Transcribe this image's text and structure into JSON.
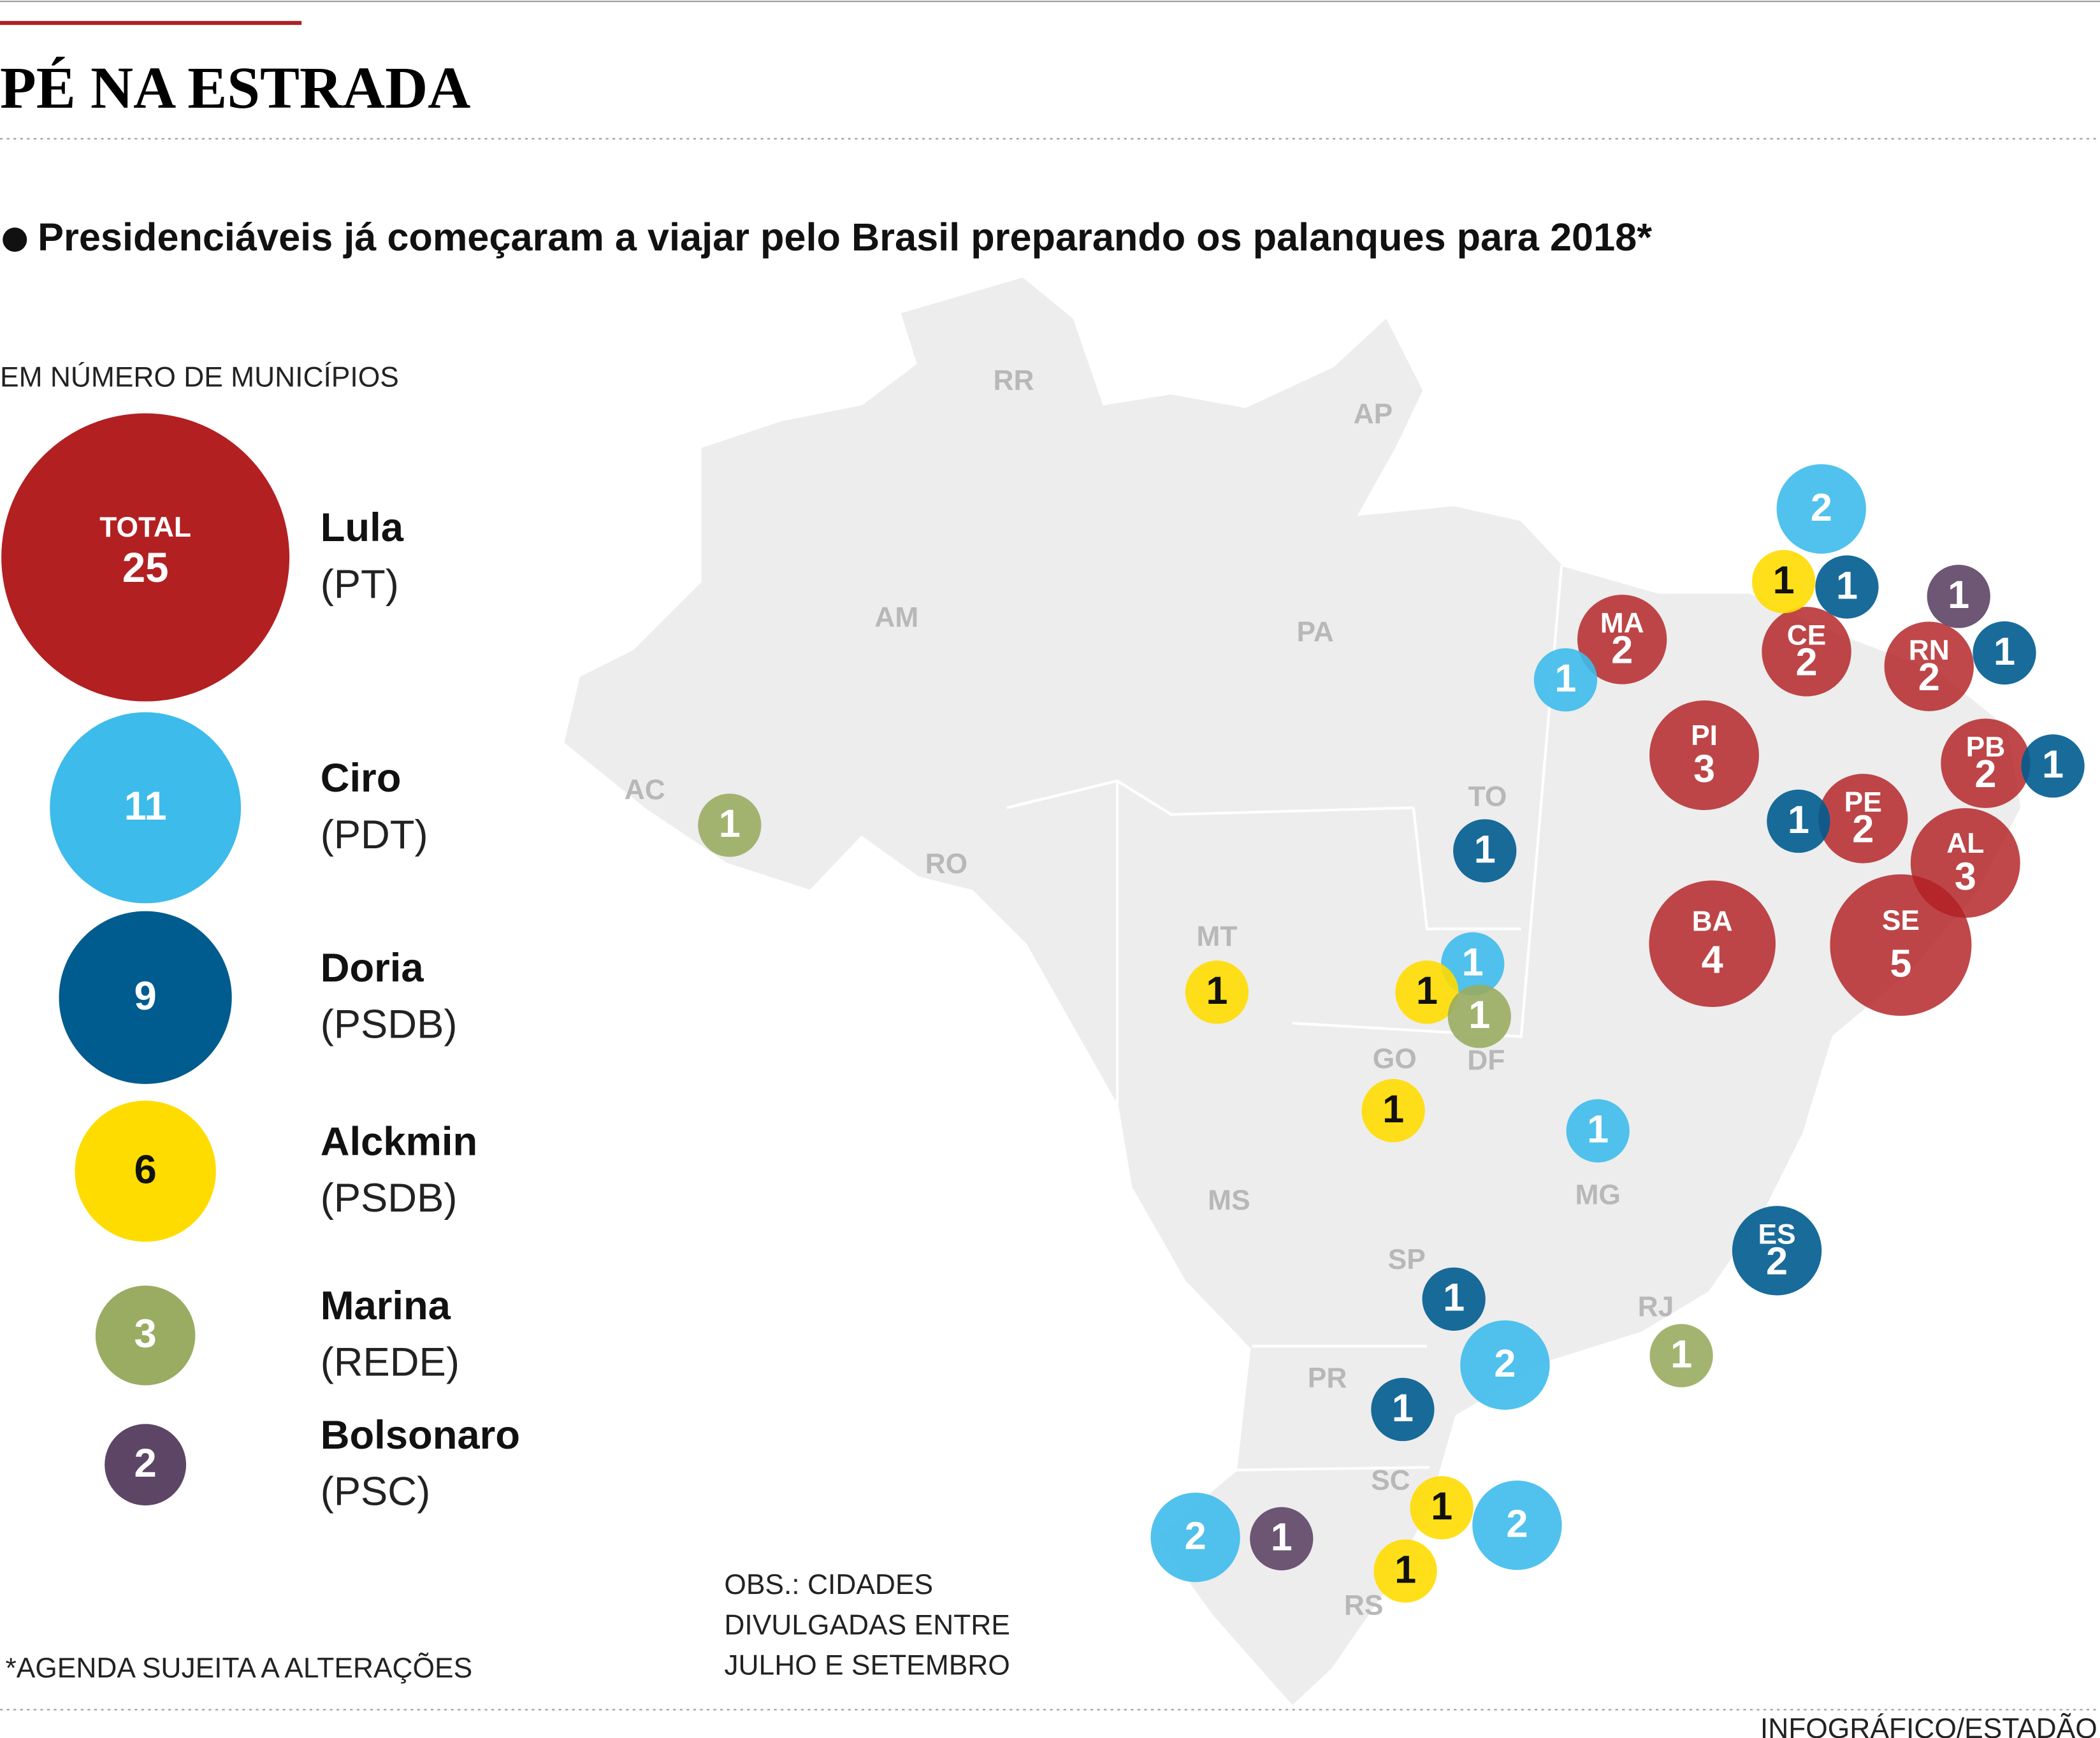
{
  "header": {
    "title": "PÉ NA ESTRADA",
    "subtitle": "Presidenciáveis já começaram a viajar pelo Brasil preparando os palanques para 2018*"
  },
  "legend": {
    "caption": "EM NÚMERO DE MUNICÍPIOS",
    "total_label": "TOTAL",
    "items": [
      {
        "name": "Lula",
        "party": "(PT)",
        "total": 25,
        "color": "#b22022",
        "label_color": "#ffffff"
      },
      {
        "name": "Ciro",
        "party": "(PDT)",
        "total": 11,
        "color": "#3dbbeb",
        "label_color": "#ffffff"
      },
      {
        "name": "Doria",
        "party": "(PSDB)",
        "total": 9,
        "color": "#005b8f",
        "label_color": "#ffffff"
      },
      {
        "name": "Alckmin",
        "party": "(PSDB)",
        "total": 6,
        "color": "#ffdc00",
        "label_color": "#111111"
      },
      {
        "name": "Marina",
        "party": "(REDE)",
        "total": 3,
        "color": "#99ac62",
        "label_color": "#ffffff"
      },
      {
        "name": "Bolsonaro",
        "party": "(PSC)",
        "total": 2,
        "color": "#5d4566",
        "label_color": "#ffffff"
      }
    ]
  },
  "states": [
    "RR",
    "AP",
    "AM",
    "PA",
    "AC",
    "RO",
    "MT",
    "TO",
    "GO",
    "DF",
    "MS",
    "MG",
    "SP",
    "RJ",
    "PR",
    "SC",
    "RS"
  ],
  "visits": [
    {
      "candidate": "Lula",
      "state": "MA",
      "count": 2
    },
    {
      "candidate": "Lula",
      "state": "CE",
      "count": 2
    },
    {
      "candidate": "Lula",
      "state": "RN",
      "count": 2
    },
    {
      "candidate": "Lula",
      "state": "PB",
      "count": 2
    },
    {
      "candidate": "Lula",
      "state": "PI",
      "count": 3
    },
    {
      "candidate": "Lula",
      "state": "PE",
      "count": 2
    },
    {
      "candidate": "Lula",
      "state": "AL",
      "count": 3
    },
    {
      "candidate": "Lula",
      "state": "BA",
      "count": 4
    },
    {
      "candidate": "Lula",
      "state": "SE",
      "count": 5
    },
    {
      "candidate": "Ciro",
      "count": 2
    },
    {
      "candidate": "Ciro",
      "count": 1
    },
    {
      "candidate": "Ciro",
      "count": 1
    },
    {
      "candidate": "Ciro",
      "count": 1
    },
    {
      "candidate": "Ciro",
      "count": 2
    },
    {
      "candidate": "Ciro",
      "count": 2
    },
    {
      "candidate": "Ciro",
      "count": 2
    },
    {
      "candidate": "Doria",
      "count": 1
    },
    {
      "candidate": "Doria",
      "count": 1
    },
    {
      "candidate": "Doria",
      "count": 1
    },
    {
      "candidate": "Doria",
      "count": 1
    },
    {
      "candidate": "Doria",
      "count": 1
    },
    {
      "candidate": "Doria",
      "count": 1
    },
    {
      "candidate": "Doria",
      "count": 1
    },
    {
      "candidate": "Doria",
      "state": "ES",
      "count": 2
    },
    {
      "candidate": "Alckmin",
      "count": 1
    },
    {
      "candidate": "Alckmin",
      "count": 1
    },
    {
      "candidate": "Alckmin",
      "count": 1
    },
    {
      "candidate": "Alckmin",
      "count": 1
    },
    {
      "candidate": "Alckmin",
      "count": 1
    },
    {
      "candidate": "Alckmin",
      "count": 1
    },
    {
      "candidate": "Marina",
      "count": 1
    },
    {
      "candidate": "Marina",
      "count": 1
    },
    {
      "candidate": "Marina",
      "count": 1
    },
    {
      "candidate": "Bolsonaro",
      "count": 1
    },
    {
      "candidate": "Bolsonaro",
      "count": 1
    }
  ],
  "note": [
    "OBS.: CIDADES",
    "DIVULGADAS ENTRE",
    "JULHO E SETEMBRO"
  ],
  "footnote": "*AGENDA SUJEITA A ALTERAÇÕES",
  "credit": "INFOGRÁFICO/ESTADÃO"
}
